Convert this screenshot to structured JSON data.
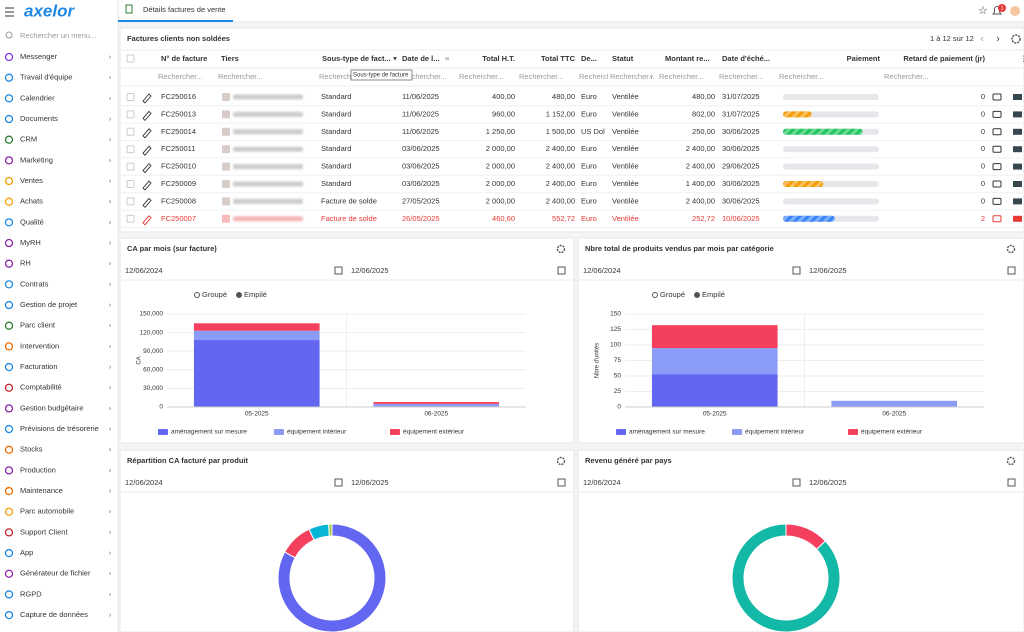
{
  "sidebar": {
    "logo": "axelor",
    "search_placeholder": "Rechercher un menu...",
    "items": [
      "Messenger",
      "Travail d'équipe",
      "Calendrier",
      "Documents",
      "CRM",
      "Marketing",
      "Ventes",
      "Achats",
      "Qualité",
      "MyRH",
      "RH",
      "Contrats",
      "Gestion de projet",
      "Parc client",
      "Intervention",
      "Facturation",
      "Comptabilité",
      "Gestion budgétaire",
      "Prévisions de trésorerie",
      "Stocks",
      "Production",
      "Maintenance",
      "Parc automobile",
      "Support Client",
      "App",
      "Générateur de fichier",
      "RGPD",
      "Capture de données"
    ]
  },
  "tab": {
    "title": "Détails factures de vente"
  },
  "topbar": {
    "notifications": 1
  },
  "table": {
    "title": "Factures clients non soldées",
    "pagination": "1 à 12 sur 12",
    "tooltip": "Sous-type de facture",
    "filter_placeholder": "Rechercher...",
    "columns": [
      "N° de facture",
      "Tiers",
      "Sous-type de fact...",
      "Date de l...",
      "Total H.T.",
      "Total TTC",
      "De...",
      "Statut",
      "Montant re...",
      "Date d'éché...",
      "Paiement",
      "Retard de paiement (jr)"
    ],
    "rows": [
      {
        "number": "FC250016",
        "subtype": "Standard",
        "date": "11/06/2025",
        "total_ht": "400,00",
        "total_ttc": "480,00",
        "currency": "Euro",
        "status": "Ventilée",
        "remaining": "480,00",
        "due_date": "31/07/2025",
        "payment_percent": 0,
        "payment_color": "#f59e0b",
        "delay": 0
      },
      {
        "number": "FC250013",
        "subtype": "Standard",
        "date": "11/06/2025",
        "total_ht": "960,00",
        "total_ttc": "1 152,00",
        "currency": "Euro",
        "status": "Ventilée",
        "remaining": "802,00",
        "due_date": "31/07/2025",
        "payment_percent": 30,
        "payment_color": "#f59e0b",
        "delay": 0
      },
      {
        "number": "FC250014",
        "subtype": "Standard",
        "date": "11/06/2025",
        "total_ht": "1 250,00",
        "total_ttc": "1 500,00",
        "currency": "US Dol",
        "status": "Ventilée",
        "remaining": "250,00",
        "due_date": "30/06/2025",
        "payment_percent": 83,
        "payment_color": "#22c55e",
        "delay": 0
      },
      {
        "number": "FC250011",
        "subtype": "Standard",
        "date": "03/06/2025",
        "total_ht": "2 000,00",
        "total_ttc": "2 400,00",
        "currency": "Euro",
        "status": "Ventilée",
        "remaining": "2 400,00",
        "due_date": "30/06/2025",
        "payment_percent": 0,
        "payment_color": "#f59e0b",
        "delay": 0
      },
      {
        "number": "FC250010",
        "subtype": "Standard",
        "date": "03/06/2025",
        "total_ht": "2 000,00",
        "total_ttc": "2 400,00",
        "currency": "Euro",
        "status": "Ventilée",
        "remaining": "2 400,00",
        "due_date": "29/06/2025",
        "payment_percent": 0,
        "payment_color": "#f59e0b",
        "delay": 0
      },
      {
        "number": "FC250009",
        "subtype": "Standard",
        "date": "03/06/2025",
        "total_ht": "2 000,00",
        "total_ttc": "2 400,00",
        "currency": "Euro",
        "status": "Ventilée",
        "remaining": "1 400,00",
        "due_date": "30/06/2025",
        "payment_percent": 42,
        "payment_color": "#f59e0b",
        "delay": 0
      },
      {
        "number": "FC250008",
        "subtype": "Facture de solde",
        "date": "27/05/2025",
        "total_ht": "2 000,00",
        "total_ttc": "2 400,00",
        "currency": "Euro",
        "status": "Ventilée",
        "remaining": "2 400,00",
        "due_date": "30/06/2025",
        "payment_percent": 0,
        "payment_color": "#f59e0b",
        "delay": 0
      },
      {
        "number": "FC250007",
        "subtype": "Facture de solde",
        "date": "26/05/2025",
        "total_ht": "460,60",
        "total_ttc": "552,72",
        "currency": "Euro",
        "status": "Ventilée",
        "remaining": "252,72",
        "due_date": "10/06/2025",
        "payment_percent": 54,
        "payment_color": "#3b82f6",
        "delay": 2,
        "overdue": true
      }
    ]
  },
  "charts": [
    {
      "type": "bar",
      "title": "CA par mois (sur facture)",
      "date_from": "12/06/2024",
      "date_to": "12/06/2025",
      "modes": [
        "Groupé",
        "Empilé"
      ],
      "stacked": true,
      "ylabel": "CA",
      "categories": [
        "05-2025",
        "06-2025"
      ],
      "ylim": [
        0,
        150000
      ],
      "yticks": [
        0,
        {
          "value": 30000,
          "label": "30,000"
        },
        {
          "value": 60000,
          "label": "60,000"
        },
        {
          "value": 90000,
          "label": "90,000"
        },
        {
          "value": 120000,
          "label": "120,000"
        },
        {
          "value": 150000,
          "label": "150,000"
        }
      ],
      "series": [
        {
          "name": "aménagement sur mesure",
          "color": "#6366f1",
          "values": [
            108000,
            0
          ]
        },
        {
          "name": "équipement intérieur",
          "color": "#8b9cf7",
          "values": [
            15000,
            5000
          ]
        },
        {
          "name": "équipement extérieur",
          "color": "#f43f5e",
          "values": [
            12000,
            3000
          ]
        }
      ]
    },
    {
      "type": "bar",
      "title": "Nbre total de produits vendus par mois par catégorie",
      "date_from": "12/06/2024",
      "date_to": "12/06/2025",
      "modes": [
        "Groupé",
        "Empilé"
      ],
      "stacked": true,
      "ylabel": "Nbre d'unités",
      "categories": [
        "05-2025",
        "06-2025"
      ],
      "ylim": [
        0,
        150
      ],
      "yticks": [
        0,
        25,
        50,
        75,
        100,
        125,
        150
      ],
      "series": [
        {
          "name": "aménagement sur mesure",
          "color": "#6366f1",
          "values": [
            53,
            0
          ]
        },
        {
          "name": "équipement intérieur",
          "color": "#8b9cf7",
          "values": [
            42,
            10
          ]
        },
        {
          "name": "équipement extérieur",
          "color": "#f43f5e",
          "values": [
            37,
            0
          ]
        }
      ]
    },
    {
      "type": "donut",
      "title": "Répartition CA facturé par produit",
      "date_from": "12/06/2024",
      "date_to": "12/06/2025",
      "values": [
        83,
        10,
        6,
        1
      ],
      "colors": [
        "#6366f1",
        "#f43f5e",
        "#06b6d4",
        "#a3c940"
      ]
    },
    {
      "type": "donut",
      "title": "Revenu généré par pays",
      "date_from": "12/06/2024",
      "date_to": "12/06/2025",
      "values": [
        13,
        87
      ],
      "colors": [
        "#f43f5e",
        "#14b8a6"
      ]
    }
  ]
}
